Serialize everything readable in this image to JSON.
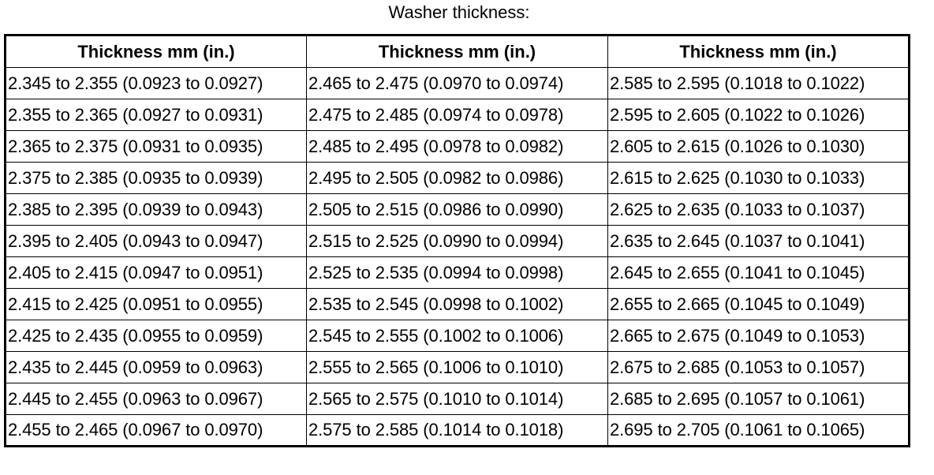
{
  "title": "Washer thickness:",
  "table": {
    "headers": [
      "Thickness mm (in.)",
      "Thickness mm (in.)",
      "Thickness mm (in.)"
    ],
    "rows": [
      [
        "2.345 to 2.355 (0.0923 to 0.0927)",
        "2.465 to 2.475 (0.0970 to 0.0974)",
        "2.585 to 2.595 (0.1018 to 0.1022)"
      ],
      [
        "2.355 to 2.365 (0.0927 to 0.0931)",
        "2.475 to 2.485 (0.0974 to 0.0978)",
        "2.595 to 2.605 (0.1022 to 0.1026)"
      ],
      [
        "2.365 to 2.375 (0.0931 to 0.0935)",
        "2.485 to 2.495 (0.0978 to 0.0982)",
        "2.605 to 2.615 (0.1026 to 0.1030)"
      ],
      [
        "2.375 to 2.385 (0.0935 to 0.0939)",
        "2.495 to 2.505 (0.0982 to 0.0986)",
        "2.615 to 2.625 (0.1030 to 0.1033)"
      ],
      [
        "2.385 to 2.395 (0.0939 to 0.0943)",
        "2.505 to 2.515 (0.0986 to 0.0990)",
        "2.625 to 2.635 (0.1033 to 0.1037)"
      ],
      [
        "2.395 to 2.405 (0.0943 to 0.0947)",
        "2.515 to 2.525 (0.0990 to 0.0994)",
        "2.635 to 2.645 (0.1037 to 0.1041)"
      ],
      [
        "2.405 to 2.415 (0.0947 to 0.0951)",
        "2.525 to 2.535 (0.0994 to 0.0998)",
        "2.645 to 2.655 (0.1041 to 0.1045)"
      ],
      [
        "2.415 to 2.425 (0.0951 to 0.0955)",
        "2.535 to 2.545 (0.0998 to 0.1002)",
        "2.655 to 2.665 (0.1045 to 0.1049)"
      ],
      [
        "2.425 to 2.435 (0.0955 to 0.0959)",
        "2.545 to 2.555 (0.1002 to 0.1006)",
        "2.665 to 2.675 (0.1049 to 0.1053)"
      ],
      [
        "2.435 to 2.445 (0.0959 to 0.0963)",
        "2.555 to 2.565 (0.1006 to 0.1010)",
        "2.675 to 2.685 (0.1053 to 0.1057)"
      ],
      [
        "2.445 to 2.455 (0.0963 to 0.0967)",
        "2.565 to 2.575 (0.1010 to 0.1014)",
        "2.685 to 2.695 (0.1057 to 0.1061)"
      ],
      [
        "2.455 to 2.465 (0.0967 to 0.0970)",
        "2.575 to 2.585 (0.1014 to 0.1018)",
        "2.695 to 2.705 (0.1061 to 0.1065)"
      ]
    ]
  }
}
